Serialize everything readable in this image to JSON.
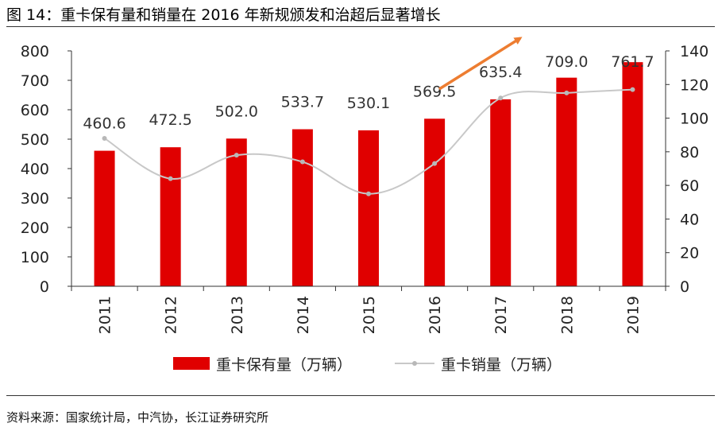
{
  "title": "图 14：重卡保有量和销量在 2016 年新规颁发和治超后显著增长",
  "source": "资料来源：国家统计局，中汽协，长江证券研究所",
  "colors": {
    "bar": "#e00000",
    "line": "#c8c8c8",
    "line_marker": "#b8b8b8",
    "arrow": "#ed7d31"
  },
  "chart_data": {
    "type": "bar",
    "categories": [
      "2011",
      "2012",
      "2013",
      "2014",
      "2015",
      "2016",
      "2017",
      "2018",
      "2019"
    ],
    "series": [
      {
        "name": "重卡保有量（万辆）",
        "type": "bar",
        "axis": "left",
        "values": [
          460.6,
          472.5,
          502.0,
          533.7,
          530.1,
          569.5,
          635.4,
          709.0,
          761.7
        ],
        "labels": [
          "460.6",
          "472.5",
          "502.0",
          "533.7",
          "530.1",
          "569.5",
          "635.4",
          "709.0",
          "761.7"
        ]
      },
      {
        "name": "重卡销量（万辆）",
        "type": "line",
        "axis": "right",
        "values": [
          88,
          64,
          78,
          74,
          55,
          73,
          112,
          115,
          117
        ]
      }
    ],
    "y_left": {
      "min": 0,
      "max": 800,
      "ticks": [
        "0",
        "100",
        "200",
        "300",
        "400",
        "500",
        "600",
        "700",
        "800"
      ]
    },
    "y_right": {
      "min": 0,
      "max": 140,
      "ticks": [
        "0",
        "20",
        "40",
        "60",
        "80",
        "100",
        "120",
        "140"
      ]
    },
    "grid": false,
    "legend_position": "bottom"
  }
}
